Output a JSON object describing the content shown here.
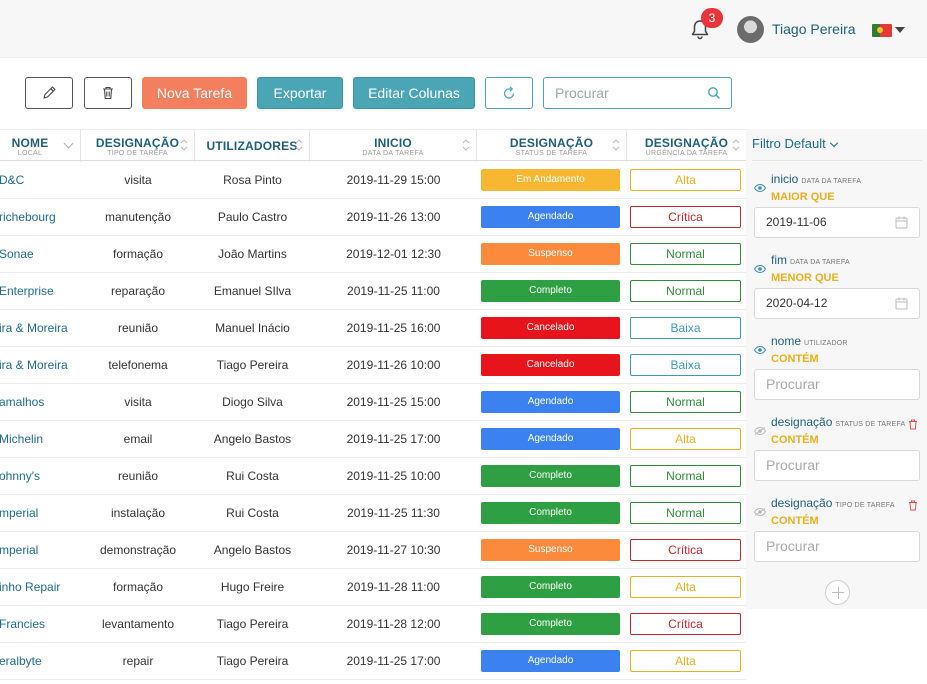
{
  "header": {
    "notifications_count": "3",
    "user_name": "Tiago Pereira",
    "language_flag": "portugal-flag-icon"
  },
  "toolbar": {
    "edit_icon": "pencil-icon",
    "delete_icon": "trash-icon",
    "new_task_label": "Nova Tarefa",
    "export_label": "Exportar",
    "edit_columns_label": "Editar Colunas",
    "refresh_icon": "refresh-icon",
    "search_placeholder": "Procurar"
  },
  "table": {
    "columns": [
      {
        "title": "NOME",
        "subtitle": "LOCAL"
      },
      {
        "title": "DESIGNAÇÃO",
        "subtitle": "TIPO DE TAREFA"
      },
      {
        "title": "UTILIZADORES",
        "subtitle": ""
      },
      {
        "title": "INICIO",
        "subtitle": "DATA DA TAREFA"
      },
      {
        "title": "DESIGNAÇÃO",
        "subtitle": "STATUS DE TAREFA"
      },
      {
        "title": "DESIGNAÇÃO",
        "subtitle": "URGÊNCIA DA TAREFA"
      }
    ],
    "rows": [
      {
        "name": "D&C",
        "type": "visita",
        "user": "Rosa Pinto",
        "start": "2019-11-29 15:00",
        "status": "Em Andamento",
        "urgency": "Alta"
      },
      {
        "name": "richebourg",
        "type": "manutenção",
        "user": "Paulo Castro",
        "start": "2019-11-26 13:00",
        "status": "Agendado",
        "urgency": "Crítica"
      },
      {
        "name": "Sonae",
        "type": "formação",
        "user": "João Martins",
        "start": "2019-12-01 12:30",
        "status": "Suspenso",
        "urgency": "Normal"
      },
      {
        "name": "Enterprise",
        "type": "reparação",
        "user": "Emanuel SIlva",
        "start": "2019-11-25 11:00",
        "status": "Completo",
        "urgency": "Normal"
      },
      {
        "name": "ira & Moreira",
        "type": "reunião",
        "user": "Manuel Inácio",
        "start": "2019-11-25 16:00",
        "status": "Cancelado",
        "urgency": "Baixa"
      },
      {
        "name": "ira & Moreira",
        "type": "telefonema",
        "user": "Tiago Pereira",
        "start": "2019-11-26 10:00",
        "status": "Cancelado",
        "urgency": "Baixa"
      },
      {
        "name": "amalhos",
        "type": "visita",
        "user": "Diogo Silva",
        "start": "2019-11-25 15:00",
        "status": "Agendado",
        "urgency": "Normal"
      },
      {
        "name": "Michelin",
        "type": "email",
        "user": "Angelo Bastos",
        "start": "2019-11-25 17:00",
        "status": "Agendado",
        "urgency": "Alta"
      },
      {
        "name": "ohnny's",
        "type": "reunião",
        "user": "Rui Costa",
        "start": "2019-11-25 10:00",
        "status": "Completo",
        "urgency": "Normal"
      },
      {
        "name": "mperial",
        "type": "instalação",
        "user": "Rui Costa",
        "start": "2019-11-25 11:30",
        "status": "Completo",
        "urgency": "Normal"
      },
      {
        "name": "mperial",
        "type": "demonstração",
        "user": "Angelo Bastos",
        "start": "2019-11-27 10:30",
        "status": "Suspenso",
        "urgency": "Crítica"
      },
      {
        "name": "inho Repair",
        "type": "formação",
        "user": "Hugo Freire",
        "start": "2019-11-28 11:00",
        "status": "Completo",
        "urgency": "Alta"
      },
      {
        "name": "Francies",
        "type": "levantamento",
        "user": "Tiago Pereira",
        "start": "2019-11-28 12:00",
        "status": "Completo",
        "urgency": "Crítica"
      },
      {
        "name": "eralbyte",
        "type": "repair",
        "user": "Tiago Pereira",
        "start": "2019-11-25 17:00",
        "status": "Agendado",
        "urgency": "Alta"
      }
    ]
  },
  "status_colors": {
    "Em Andamento": "#f7b731",
    "Agendado": "#3b82f0",
    "Suspenso": "#fb8a3c",
    "Completo": "#2ea043",
    "Cancelado": "#e8141c"
  },
  "urgency_colors": {
    "Alta": "#e8b020",
    "Crítica": "#c0272d",
    "Normal": "#2e8b3a",
    "Baixa": "#3b9ab8"
  },
  "filters": {
    "title": "Filtro Default",
    "items": [
      {
        "name": "inicio",
        "sub": "DATA DA TAREFA",
        "op": "MAIOR QUE",
        "value": "2019-11-06",
        "placeholder": ""
      },
      {
        "name": "fim",
        "sub": "DATA DA TAREFA",
        "op": "MENOR QUE",
        "value": "2020-04-12",
        "placeholder": ""
      },
      {
        "name": "nome",
        "sub": "UTILIZADOR",
        "op": "CONTÉM",
        "value": "",
        "placeholder": "Procurar"
      },
      {
        "name": "designação",
        "sub": "STATUS DE TAREFA",
        "op": "CONTÉM",
        "value": "",
        "placeholder": "Procurar"
      },
      {
        "name": "designação",
        "sub": "TIPO DE TAREFA",
        "op": "CONTÉM",
        "value": "",
        "placeholder": "Procurar"
      }
    ]
  }
}
